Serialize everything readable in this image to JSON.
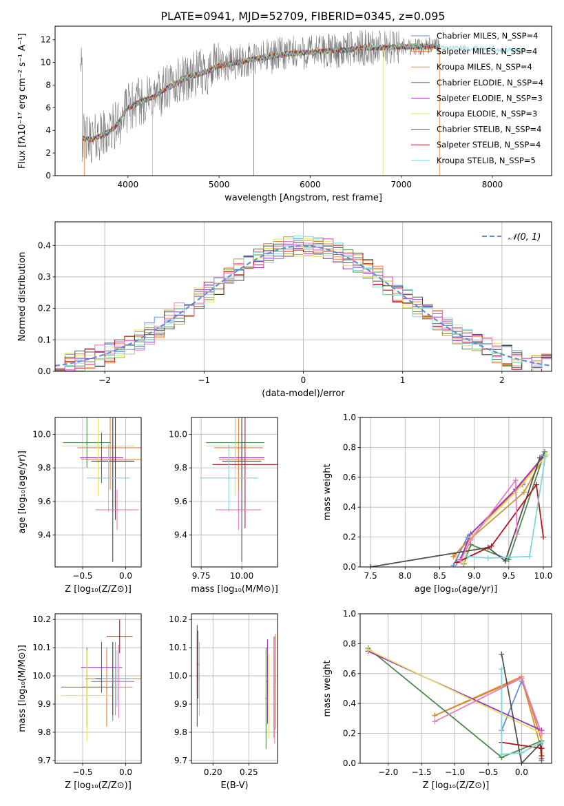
{
  "figure_title": "PLATE=0941, MJD=52709, FIBERID=0345, z=0.095",
  "model_colors": [
    "#5f8fd9",
    "#ef7e33",
    "#c9963a",
    "#4e8a4e",
    "#9a2fc2",
    "#e3e35f",
    "#505050",
    "#b01818",
    "#7fd6d9",
    "#e77bc0"
  ],
  "chart_data": [
    {
      "id": "spectrum",
      "type": "line",
      "xlabel": "wavelength [Angstrom, rest frame]",
      "ylabel": "Flux [fλ10⁻¹⁷ erg cm⁻² s⁻¹ A⁻¹]",
      "xlim": [
        3200,
        8650
      ],
      "ylim": [
        0,
        13.2
      ],
      "xticks": [
        4000,
        5000,
        6000,
        7000,
        8000
      ],
      "yticks": [
        0,
        2,
        4,
        6,
        8,
        10,
        12
      ],
      "grid": false,
      "legend_position": "upper right",
      "continuum": {
        "x": [
          3500,
          3600,
          3700,
          3800,
          3900,
          4000,
          4100,
          4200,
          4300,
          4400,
          4500,
          4600,
          4700,
          4800,
          4900,
          5000,
          5200,
          5400,
          5600,
          5800,
          6000,
          6200,
          6400,
          6600,
          6800,
          7000,
          7200,
          7400,
          7600,
          7800,
          8000,
          8200,
          8430
        ],
        "y": [
          3.3,
          3.2,
          3.5,
          3.9,
          4.7,
          6.0,
          6.4,
          6.7,
          7.0,
          7.6,
          8.0,
          8.5,
          8.8,
          9.0,
          9.3,
          9.7,
          10.0,
          10.3,
          10.6,
          10.8,
          10.9,
          11.0,
          11.1,
          11.3,
          11.3,
          11.4,
          11.4,
          11.4,
          11.3,
          11.2,
          11.2,
          11.1,
          11.0
        ]
      },
      "series": [
        {
          "name": "Chabrier MILES, N_SSP=4",
          "color": "#5f8fd9"
        },
        {
          "name": "Salpeter MILES, N_SSP=4",
          "color": "#ef7e33"
        },
        {
          "name": "Kroupa MILES, N_SSP=4",
          "color": "#c9963a"
        },
        {
          "name": "Chabrier ELODIE, N_SSP=4",
          "color": "#4e8a4e"
        },
        {
          "name": "Salpeter ELODIE, N_SSP=3",
          "color": "#9a2fc2"
        },
        {
          "name": "Kroupa ELODIE, N_SSP=3",
          "color": "#e3e35f"
        },
        {
          "name": "Chabrier STELIB, N_SSP=4",
          "color": "#505050"
        },
        {
          "name": "Salpeter STELIB, N_SSP=4",
          "color": "#b01818"
        },
        {
          "name": "Kroupa STELIB, N_SSP=5",
          "color": "#7fd6d9"
        }
      ]
    },
    {
      "id": "residuals",
      "type": "line",
      "xlabel": "(data-model)/error",
      "ylabel": "Normed distribution",
      "xlim": [
        -2.5,
        2.5
      ],
      "ylim": [
        0,
        0.475
      ],
      "xticks": [
        -2,
        -1,
        0,
        1,
        2
      ],
      "xtick_labels": [
        "−2",
        "−1",
        "0",
        "1",
        "2"
      ],
      "yticks": [
        0.0,
        0.1,
        0.2,
        0.3,
        0.4
      ],
      "ytick_labels": [
        "0.0",
        "0.1",
        "0.2",
        "0.3",
        "0.4"
      ],
      "grid": true,
      "legend_position": "upper right",
      "legend": "𝒩(0, 1)",
      "gaussian": {
        "mean": 0,
        "sigma": 1,
        "color": "#5f8fd9"
      },
      "bin_width": 0.1
    },
    {
      "id": "age_vs_Z",
      "type": "scatter",
      "xlabel": "Z [log₁₀(Z/Z⊙)]",
      "ylabel": "age  [log₁₀(age/yr)]",
      "xlim": [
        -0.82,
        0.18
      ],
      "ylim": [
        9.21,
        10.1
      ],
      "xticks": [
        -0.5,
        0.0
      ],
      "xtick_labels": [
        "−0.5",
        "0.0"
      ],
      "yticks": [
        9.4,
        9.6,
        9.8,
        10.0
      ],
      "ytick_labels": [
        "9.4",
        "9.6",
        "9.8",
        "10.0"
      ],
      "grid": true,
      "points": [
        {
          "x": -0.15,
          "y": 9.84,
          "xerr": 0.25,
          "yerr": 0.3,
          "color": 0
        },
        {
          "x": -0.18,
          "y": 9.92,
          "xerr": 0.38,
          "yerr": 0.25,
          "color": 1
        },
        {
          "x": -0.12,
          "y": 9.85,
          "xerr": 0.4,
          "yerr": 0.3,
          "color": 2
        },
        {
          "x": -0.45,
          "y": 9.95,
          "xerr": 0.28,
          "yerr": 0.15,
          "color": 3
        },
        {
          "x": -0.28,
          "y": 9.86,
          "xerr": 0.25,
          "yerr": 0.15,
          "color": 4
        },
        {
          "x": -0.32,
          "y": 9.93,
          "xerr": 0.42,
          "yerr": 0.3,
          "color": 5
        },
        {
          "x": -0.15,
          "y": 9.84,
          "xerr": 0.25,
          "yerr": 0.6,
          "color": 6
        },
        {
          "x": -0.12,
          "y": 9.84,
          "xerr": 0.22,
          "yerr": 0.35,
          "color": 7
        },
        {
          "x": -0.2,
          "y": 9.74,
          "xerr": 0.25,
          "yerr": 0.2,
          "color": 8
        },
        {
          "x": -0.1,
          "y": 9.55,
          "xerr": 0.25,
          "yerr": 0.12,
          "color": 9
        }
      ]
    },
    {
      "id": "age_vs_mass",
      "type": "scatter",
      "xlabel": "mass [log₁₀(M/M⊙)]",
      "ylabel": "",
      "xlim": [
        9.69,
        10.22
      ],
      "ylim": [
        9.21,
        10.1
      ],
      "xticks": [
        9.75,
        10.0
      ],
      "xtick_labels": [
        "9.75",
        "10.00"
      ],
      "yticks": [
        9.4,
        9.6,
        9.8,
        10.0
      ],
      "ytick_labels": [
        "9.4",
        "9.6",
        "9.8",
        "10.0"
      ],
      "grid": true,
      "points": [
        {
          "x": 10.0,
          "y": 9.84,
          "xerr": 0.12,
          "yerr": 0.3,
          "color": 0
        },
        {
          "x": 9.98,
          "y": 9.92,
          "xerr": 0.15,
          "yerr": 0.25,
          "color": 1
        },
        {
          "x": 10.0,
          "y": 9.85,
          "xerr": 0.14,
          "yerr": 0.3,
          "color": 2
        },
        {
          "x": 9.96,
          "y": 9.95,
          "xerr": 0.18,
          "yerr": 0.15,
          "color": 3
        },
        {
          "x": 10.0,
          "y": 9.86,
          "xerr": 0.14,
          "yerr": 0.15,
          "color": 4
        },
        {
          "x": 9.96,
          "y": 9.93,
          "xerr": 0.18,
          "yerr": 0.3,
          "color": 5
        },
        {
          "x": 10.0,
          "y": 9.84,
          "xerr": 0.12,
          "yerr": 0.6,
          "color": 6
        },
        {
          "x": 10.02,
          "y": 9.82,
          "xerr": 0.2,
          "yerr": 0.38,
          "color": 7
        },
        {
          "x": 9.92,
          "y": 9.74,
          "xerr": 0.18,
          "yerr": 0.2,
          "color": 8
        },
        {
          "x": 9.98,
          "y": 9.55,
          "xerr": 0.14,
          "yerr": 0.12,
          "color": 9
        }
      ]
    },
    {
      "id": "weight_vs_age",
      "type": "line",
      "xlabel": "age  [log₁₀(age/yr)]",
      "ylabel": "mass weight",
      "xlim": [
        7.35,
        10.12
      ],
      "ylim": [
        0,
        1.0
      ],
      "xticks": [
        7.5,
        8.0,
        8.5,
        9.0,
        9.5,
        10.0
      ],
      "xtick_labels": [
        "7.5",
        "8.0",
        "8.5",
        "9.0",
        "9.5",
        "10.0"
      ],
      "yticks": [
        0.0,
        0.2,
        0.4,
        0.6,
        0.8,
        1.0
      ],
      "ytick_labels": [
        "0.0",
        "0.2",
        "0.4",
        "0.6",
        "0.8",
        "1.0"
      ],
      "grid": true,
      "series": [
        {
          "color": 0,
          "x": [
            8.7,
            8.9,
            9.7,
            10.0
          ],
          "y": [
            0.01,
            0.2,
            0.55,
            0.75
          ]
        },
        {
          "color": 1,
          "x": [
            8.7,
            8.95,
            9.7,
            10.0
          ],
          "y": [
            0.07,
            0.2,
            0.56,
            0.74
          ]
        },
        {
          "color": 2,
          "x": [
            8.72,
            8.95,
            9.72,
            10.02
          ],
          "y": [
            0.08,
            0.19,
            0.5,
            0.75
          ]
        },
        {
          "color": 3,
          "x": [
            8.85,
            8.95,
            9.5,
            10.02
          ],
          "y": [
            0.02,
            0.15,
            0.05,
            0.77
          ]
        },
        {
          "color": 4,
          "x": [
            8.8,
            8.95,
            9.6,
            10.0
          ],
          "y": [
            0.05,
            0.22,
            0.52,
            0.74
          ]
        },
        {
          "color": 5,
          "x": [
            8.85,
            8.95,
            9.6,
            10.05
          ],
          "y": [
            0.03,
            0.2,
            0.5,
            0.75
          ]
        },
        {
          "color": 6,
          "x": [
            7.5,
            9.2,
            9.45,
            9.95
          ],
          "y": [
            0.0,
            0.13,
            0.04,
            0.73
          ]
        },
        {
          "color": 7,
          "x": [
            8.75,
            9.25,
            9.9,
            10.0
          ],
          "y": [
            0.03,
            0.14,
            0.55,
            0.2
          ]
        },
        {
          "color": 8,
          "x": [
            8.9,
            9.2,
            9.8,
            10.03
          ],
          "y": [
            0.07,
            0.06,
            0.07,
            0.74
          ]
        },
        {
          "color": 9,
          "x": [
            8.8,
            8.95,
            9.6,
            9.62
          ],
          "y": [
            0.04,
            0.18,
            0.58,
            0.22
          ]
        }
      ]
    },
    {
      "id": "mass_vs_Z",
      "type": "scatter",
      "xlabel": "Z [log₁₀(Z/Z⊙)]",
      "ylabel": "mass [log₁₀(M/M⊙)]",
      "xlim": [
        -0.82,
        0.18
      ],
      "ylim": [
        9.69,
        10.22
      ],
      "xticks": [
        -0.5,
        0.0
      ],
      "xtick_labels": [
        "−0.5",
        "0.0"
      ],
      "yticks": [
        9.7,
        9.8,
        9.9,
        10.0,
        10.1,
        10.2
      ],
      "ytick_labels": [
        "9.7",
        "9.8",
        "9.9",
        "10.0",
        "10.1",
        "10.2"
      ],
      "grid": true,
      "points": [
        {
          "x": -0.15,
          "y": 9.98,
          "xerr": 0.25,
          "yerr": 0.14,
          "color": 0
        },
        {
          "x": -0.22,
          "y": 9.96,
          "xerr": 0.3,
          "yerr": 0.14,
          "color": 1
        },
        {
          "x": -0.12,
          "y": 9.99,
          "xerr": 0.35,
          "yerr": 0.13,
          "color": 2
        },
        {
          "x": -0.45,
          "y": 9.96,
          "xerr": 0.3,
          "yerr": 0.14,
          "color": 3
        },
        {
          "x": -0.28,
          "y": 10.03,
          "xerr": 0.24,
          "yerr": 0.09,
          "color": 4
        },
        {
          "x": -0.45,
          "y": 9.93,
          "xerr": 0.3,
          "yerr": 0.16,
          "color": 5
        },
        {
          "x": -0.15,
          "y": 9.99,
          "xerr": 0.2,
          "yerr": 0.13,
          "color": 6
        },
        {
          "x": -0.07,
          "y": 10.14,
          "xerr": 0.15,
          "yerr": 0.06,
          "color": 7
        },
        {
          "x": -0.1,
          "y": 9.99,
          "xerr": 0.18,
          "yerr": 0.1,
          "color": 8
        },
        {
          "x": -0.08,
          "y": 9.98,
          "xerr": 0.18,
          "yerr": 0.13,
          "color": 9
        }
      ]
    },
    {
      "id": "mass_vs_ebv",
      "type": "scatter",
      "xlabel": "E(B-V)",
      "ylabel": "",
      "xlim": [
        0.17,
        0.29
      ],
      "ylim": [
        9.69,
        10.22
      ],
      "xticks": [
        0.2,
        0.25
      ],
      "xtick_labels": [
        "0.20",
        "0.25"
      ],
      "yticks": [
        9.7,
        9.8,
        9.9,
        10.0,
        10.1,
        10.2
      ],
      "ytick_labels": [
        "9.7",
        "9.8",
        "9.9",
        "10.0",
        "10.1",
        "10.2"
      ],
      "grid": true,
      "points": [
        {
          "x": 0.178,
          "y": 10.0,
          "yerr": 0.18,
          "color": 6
        },
        {
          "x": 0.179,
          "y": 10.04,
          "yerr": 0.12,
          "color": 7
        },
        {
          "x": 0.181,
          "y": 9.99,
          "yerr": 0.13,
          "color": 8
        },
        {
          "x": 0.274,
          "y": 9.92,
          "yerr": 0.18,
          "color": 3
        },
        {
          "x": 0.276,
          "y": 9.98,
          "yerr": 0.15,
          "color": 4
        },
        {
          "x": 0.278,
          "y": 9.93,
          "yerr": 0.15,
          "color": 5
        },
        {
          "x": 0.285,
          "y": 9.96,
          "yerr": 0.18,
          "color": 1
        },
        {
          "x": 0.286,
          "y": 9.95,
          "yerr": 0.19,
          "color": 9
        },
        {
          "x": 0.287,
          "y": 9.98,
          "yerr": 0.17,
          "color": 2
        }
      ]
    },
    {
      "id": "weight_vs_Z",
      "type": "line",
      "xlabel": "Z [log₁₀(Z/Z⊙)]",
      "ylabel": "mass weight",
      "xlim": [
        -2.42,
        0.45
      ],
      "ylim": [
        0,
        1.0
      ],
      "xticks": [
        -2.0,
        -1.5,
        -1.0,
        -0.5,
        0.0
      ],
      "xtick_labels": [
        "−2.0",
        "−1.5",
        "−1.0",
        "−0.5",
        "0.0"
      ],
      "yticks": [
        0.0,
        0.2,
        0.4,
        0.6,
        0.8,
        1.0
      ],
      "ytick_labels": [
        "0.0",
        "0.2",
        "0.4",
        "0.6",
        "0.8",
        "1.0"
      ],
      "grid": true,
      "series": [
        {
          "color": 0,
          "x": [
            -0.3,
            0.0,
            0.3,
            0.3
          ],
          "y": [
            0.22,
            0.55,
            0.2,
            0.02
          ]
        },
        {
          "color": 1,
          "x": [
            -1.3,
            0.0,
            0.3,
            0.3
          ],
          "y": [
            0.32,
            0.58,
            0.15,
            0.05
          ]
        },
        {
          "color": 2,
          "x": [
            -1.3,
            0.0,
            0.28,
            0.3
          ],
          "y": [
            0.32,
            0.57,
            0.12,
            0.05
          ]
        },
        {
          "color": 3,
          "x": [
            -2.3,
            -0.3,
            0.3,
            0.3
          ],
          "y": [
            0.77,
            0.04,
            0.15,
            0.02
          ]
        },
        {
          "color": 4,
          "x": [
            -2.3,
            0.3,
            0.3
          ],
          "y": [
            0.75,
            0.22,
            0.1
          ]
        },
        {
          "color": 5,
          "x": [
            -2.3,
            0.3,
            0.3
          ],
          "y": [
            0.76,
            0.2,
            0.07
          ]
        },
        {
          "color": 6,
          "x": [
            -0.3,
            0.0,
            0.28,
            0.3
          ],
          "y": [
            0.73,
            0.0,
            0.13,
            0.03
          ]
        },
        {
          "color": 7,
          "x": [
            -0.3,
            0.3,
            0.3
          ],
          "y": [
            0.14,
            0.1,
            0.05
          ]
        },
        {
          "color": 8,
          "x": [
            -0.3,
            -0.3,
            0.0,
            0.3
          ],
          "y": [
            0.63,
            0.06,
            0.07,
            0.14
          ]
        },
        {
          "color": 9,
          "x": [
            -1.3,
            0.0,
            0.3
          ],
          "y": [
            0.28,
            0.57,
            0.2
          ]
        }
      ]
    }
  ]
}
